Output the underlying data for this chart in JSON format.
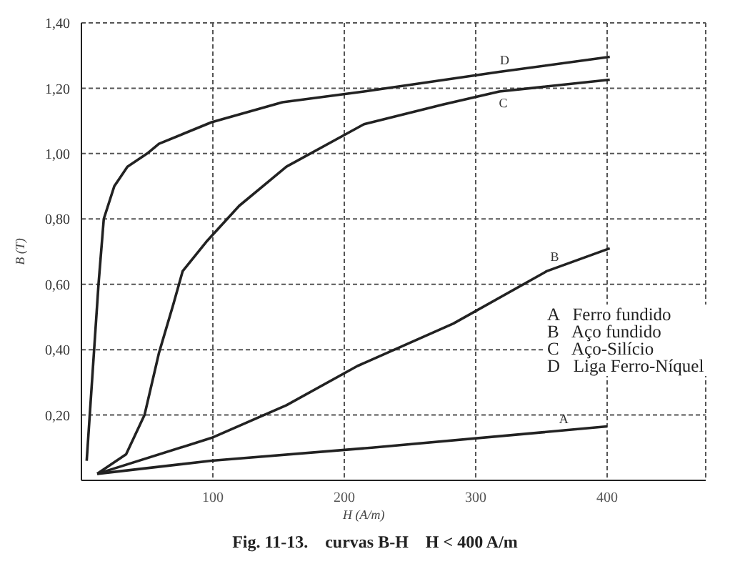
{
  "chart_data": {
    "type": "line",
    "title": "Fig. 11-13.    curvas B-H    H < 400 A/m",
    "xlabel": "H (A/m)",
    "ylabel": "B (T)",
    "xlim": [
      0,
      475
    ],
    "xticks": [
      100,
      200,
      300,
      400
    ],
    "ylim": [
      0,
      1.4
    ],
    "yticks": [
      {
        "value": 0.2,
        "label": "0,20"
      },
      {
        "value": 0.4,
        "label": "0,40"
      },
      {
        "value": 0.6,
        "label": "0,60"
      },
      {
        "value": 0.8,
        "label": "0,80"
      },
      {
        "value": 1.0,
        "label": "1,00"
      },
      {
        "value": 1.2,
        "label": "1,20"
      },
      {
        "value": 1.4,
        "label": "1,40"
      }
    ],
    "grid": true,
    "marker": "none",
    "line_style": "solid",
    "series": [
      {
        "color": "#222222",
        "x": [
          12,
          99,
          221,
          400
        ],
        "values": [
          0.02,
          0.06,
          0.1,
          0.165
        ]
      },
      {
        "color": "#222222",
        "x": [
          12,
          99,
          156,
          210,
          283,
          354,
          402
        ],
        "values": [
          0.02,
          0.13,
          0.23,
          0.35,
          0.48,
          0.64,
          0.71
        ]
      },
      {
        "color": "#222222",
        "x": [
          12,
          34,
          48,
          59,
          70,
          77,
          95,
          120,
          156,
          215,
          275,
          318,
          402
        ],
        "values": [
          0.02,
          0.08,
          0.2,
          0.39,
          0.54,
          0.64,
          0.73,
          0.84,
          0.96,
          1.09,
          1.15,
          1.19,
          1.226
        ]
      },
      {
        "color": "#222222",
        "x": [
          4,
          13,
          17,
          25,
          35,
          50,
          59,
          99,
          153,
          215,
          318,
          402
        ],
        "values": [
          0.06,
          0.6,
          0.8,
          0.9,
          0.96,
          1.0,
          1.03,
          1.096,
          1.157,
          1.19,
          1.25,
          1.296
        ]
      }
    ],
    "annotations": [
      {
        "text": "A",
        "x": 367,
        "y": 0.153
      },
      {
        "text": "B",
        "x": 360,
        "y": 0.649
      },
      {
        "text": "C",
        "x": 321,
        "y": 1.191
      },
      {
        "text": "D",
        "x": 322,
        "y": 1.252
      },
      "A   Ferro fundido",
      "B   Aço fundido",
      "C   Aço-Silício",
      "D   Liga Ferro-Níquel"
    ]
  }
}
